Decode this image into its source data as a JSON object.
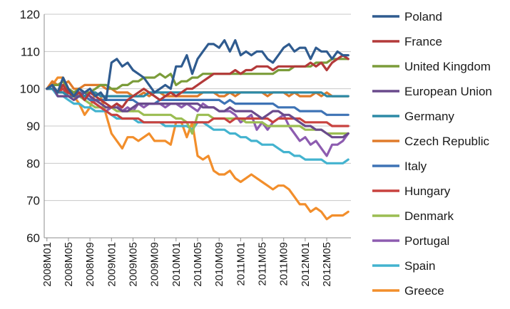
{
  "chart_data": {
    "type": "line",
    "title": "",
    "xlabel": "",
    "ylabel": "",
    "ylim": [
      60,
      120
    ],
    "yticks": [
      60,
      70,
      80,
      90,
      100,
      110,
      120
    ],
    "grid": true,
    "legend_position": "right",
    "x": [
      "2008M01",
      "2008M02",
      "2008M03",
      "2008M04",
      "2008M05",
      "2008M06",
      "2008M07",
      "2008M08",
      "2008M09",
      "2008M10",
      "2008M11",
      "2008M12",
      "2009M01",
      "2009M02",
      "2009M03",
      "2009M04",
      "2009M05",
      "2009M06",
      "2009M07",
      "2009M08",
      "2009M09",
      "2009M10",
      "2009M11",
      "2009M12",
      "2010M01",
      "2010M02",
      "2010M03",
      "2010M04",
      "2010M05",
      "2010M06",
      "2010M07",
      "2010M08",
      "2010M09",
      "2010M10",
      "2010M11",
      "2010M12",
      "2011M01",
      "2011M02",
      "2011M03",
      "2011M04",
      "2011M05",
      "2011M06",
      "2011M07",
      "2011M08",
      "2011M09",
      "2011M10",
      "2011M11",
      "2011M12",
      "2012M01",
      "2012M02",
      "2012M03",
      "2012M04",
      "2012M05",
      "2012M06",
      "2012M07",
      "2012M08",
      "2012M09"
    ],
    "xtick_labels": [
      "2008M01",
      "2008M05",
      "2008M09",
      "2009M01",
      "2009M05",
      "2009M09",
      "2010M01",
      "2010M05",
      "2010M09",
      "2011M01",
      "2011M05",
      "2011M09",
      "2012M01",
      "2012M05"
    ],
    "series": [
      {
        "name": "Poland",
        "color": "#2f5b8f",
        "values": [
          100,
          101,
          99,
          103,
          100,
          98,
          100,
          99,
          100,
          98,
          99,
          97,
          107,
          108,
          106,
          107,
          105,
          104,
          103,
          101,
          99,
          100,
          101,
          100,
          106,
          106,
          109,
          104,
          108,
          110,
          112,
          112,
          111,
          113,
          110,
          113,
          109,
          110,
          109,
          110,
          110,
          108,
          107,
          109,
          111,
          112,
          110,
          111,
          111,
          108,
          111,
          110,
          110,
          108,
          110,
          109,
          109
        ]
      },
      {
        "name": "France",
        "color": "#b33a3a",
        "values": [
          100,
          101,
          99,
          101,
          99,
          98,
          99,
          97,
          99,
          98,
          97,
          96,
          95,
          96,
          95,
          97,
          98,
          99,
          100,
          99,
          98,
          97,
          98,
          99,
          98,
          99,
          100,
          100,
          101,
          102,
          103,
          104,
          104,
          104,
          104,
          105,
          104,
          105,
          105,
          106,
          106,
          106,
          105,
          106,
          106,
          106,
          106,
          106,
          106,
          107,
          106,
          107,
          105,
          107,
          108,
          109,
          108
        ]
      },
      {
        "name": "United Kingdom",
        "color": "#7b9c3a",
        "values": [
          100,
          101,
          101,
          102,
          100,
          99,
          100,
          99,
          99,
          100,
          101,
          101,
          100,
          100,
          101,
          101,
          102,
          102,
          103,
          103,
          103,
          104,
          103,
          104,
          101,
          102,
          102,
          103,
          103,
          104,
          104,
          104,
          104,
          104,
          104,
          104,
          104,
          104,
          104,
          104,
          104,
          104,
          104,
          105,
          105,
          105,
          106,
          106,
          106,
          106,
          107,
          107,
          107,
          108,
          108,
          108,
          108
        ]
      },
      {
        "name": "European Union",
        "color": "#6a4a8c",
        "values": [
          100,
          101,
          98,
          98,
          98,
          97,
          98,
          99,
          98,
          97,
          96,
          95,
          95,
          95,
          94,
          94,
          95,
          96,
          96,
          96,
          96,
          96,
          96,
          96,
          96,
          96,
          96,
          96,
          96,
          95,
          95,
          95,
          94,
          94,
          95,
          94,
          94,
          94,
          94,
          93,
          92,
          93,
          94,
          94,
          93,
          93,
          92,
          91,
          90,
          90,
          89,
          89,
          88,
          87,
          87,
          87,
          88
        ]
      },
      {
        "name": "Germany",
        "color": "#2d8aa6",
        "values": [
          100,
          100,
          99,
          99,
          98,
          98,
          99,
          98,
          99,
          99,
          98,
          98,
          98,
          98,
          98,
          98,
          98,
          98,
          98,
          99,
          99,
          99,
          99,
          99,
          99,
          99,
          99,
          99,
          99,
          99,
          99,
          99,
          99,
          99,
          99,
          99,
          99,
          99,
          99,
          99,
          99,
          99,
          99,
          99,
          99,
          99,
          99,
          99,
          99,
          99,
          99,
          99,
          98,
          98,
          98,
          98,
          98
        ]
      },
      {
        "name": "Czech Republic",
        "color": "#e07b2a",
        "values": [
          100,
          102,
          101,
          101,
          102,
          100,
          100,
          101,
          101,
          101,
          101,
          100,
          100,
          99,
          99,
          99,
          98,
          98,
          99,
          98,
          99,
          99,
          98,
          98,
          98,
          98,
          98,
          98,
          98,
          99,
          99,
          99,
          98,
          98,
          99,
          98,
          99,
          99,
          99,
          99,
          99,
          98,
          99,
          99,
          99,
          98,
          99,
          98,
          98,
          98,
          99,
          98,
          99,
          98,
          98,
          98,
          98
        ]
      },
      {
        "name": "Italy",
        "color": "#3e73b5",
        "values": [
          100,
          100,
          99,
          99,
          98,
          98,
          98,
          98,
          97,
          97,
          97,
          97,
          97,
          97,
          97,
          97,
          97,
          96,
          96,
          96,
          96,
          97,
          97,
          97,
          97,
          97,
          97,
          97,
          97,
          97,
          97,
          97,
          97,
          96,
          97,
          96,
          96,
          96,
          96,
          96,
          96,
          96,
          96,
          95,
          95,
          95,
          95,
          94,
          94,
          94,
          94,
          94,
          93,
          93,
          93,
          93,
          93
        ]
      },
      {
        "name": "Hungary",
        "color": "#c8423f",
        "values": [
          100,
          100,
          99,
          100,
          98,
          98,
          98,
          98,
          97,
          96,
          95,
          94,
          93,
          93,
          92,
          92,
          92,
          92,
          91,
          91,
          91,
          91,
          91,
          91,
          91,
          91,
          91,
          91,
          91,
          91,
          91,
          92,
          92,
          92,
          91,
          92,
          92,
          92,
          92,
          92,
          92,
          92,
          91,
          92,
          92,
          92,
          92,
          92,
          91,
          91,
          91,
          91,
          91,
          90,
          90,
          90,
          90
        ]
      },
      {
        "name": "Denmark",
        "color": "#9bbd52",
        "values": [
          100,
          101,
          99,
          100,
          100,
          99,
          98,
          97,
          96,
          95,
          95,
          95,
          95,
          94,
          94,
          94,
          94,
          94,
          93,
          93,
          93,
          93,
          93,
          93,
          92,
          92,
          91,
          88,
          93,
          93,
          93,
          92,
          92,
          92,
          92,
          92,
          92,
          91,
          91,
          91,
          91,
          90,
          90,
          90,
          90,
          90,
          90,
          90,
          89,
          89,
          89,
          89,
          88,
          88,
          88,
          88,
          88
        ]
      },
      {
        "name": "Portugal",
        "color": "#8d5cb0",
        "values": [
          100,
          100,
          99,
          100,
          99,
          98,
          99,
          99,
          98,
          96,
          95,
          94,
          95,
          96,
          94,
          95,
          94,
          96,
          95,
          96,
          96,
          96,
          95,
          96,
          96,
          95,
          96,
          95,
          94,
          96,
          95,
          95,
          94,
          94,
          94,
          93,
          91,
          92,
          93,
          89,
          91,
          89,
          91,
          92,
          93,
          90,
          88,
          86,
          87,
          85,
          86,
          84,
          82,
          85,
          85,
          86,
          88
        ]
      },
      {
        "name": "Spain",
        "color": "#43b3cf",
        "values": [
          100,
          100,
          98,
          98,
          97,
          96,
          96,
          95,
          95,
          94,
          94,
          94,
          93,
          92,
          92,
          92,
          92,
          91,
          91,
          91,
          91,
          91,
          90,
          90,
          90,
          90,
          90,
          89,
          91,
          91,
          90,
          89,
          89,
          89,
          88,
          88,
          87,
          87,
          86,
          86,
          85,
          85,
          85,
          84,
          83,
          83,
          82,
          82,
          81,
          81,
          81,
          81,
          80,
          80,
          80,
          80,
          81
        ]
      },
      {
        "name": "Greece",
        "color": "#f28e2b",
        "values": [
          100,
          101,
          103,
          103,
          100,
          98,
          96,
          93,
          95,
          99,
          98,
          93,
          88,
          86,
          84,
          87,
          87,
          86,
          87,
          88,
          86,
          86,
          86,
          85,
          91,
          91,
          87,
          91,
          82,
          81,
          82,
          78,
          77,
          77,
          78,
          76,
          75,
          76,
          77,
          76,
          75,
          74,
          73,
          74,
          74,
          73,
          71,
          69,
          69,
          67,
          68,
          67,
          65,
          66,
          66,
          66,
          67
        ]
      }
    ]
  }
}
